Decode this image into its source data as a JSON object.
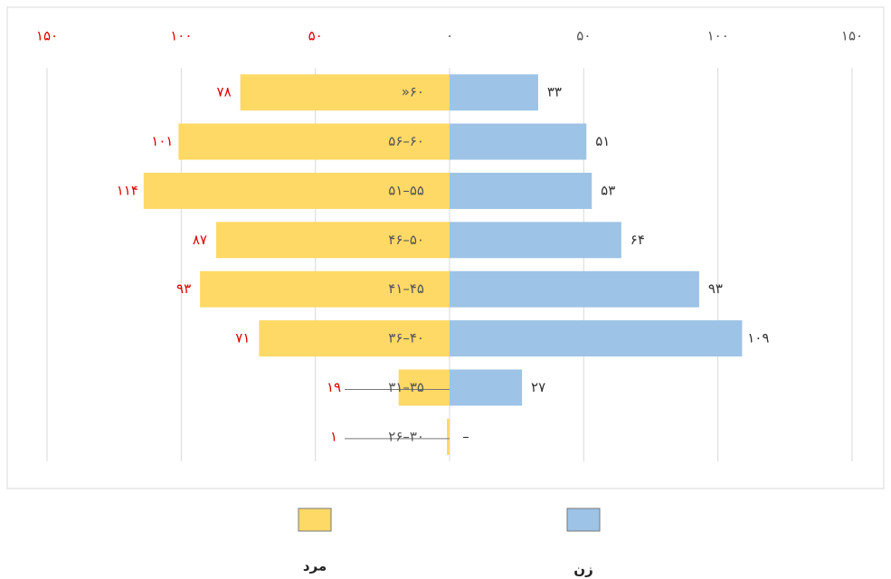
{
  "chart_data": {
    "type": "pyramid",
    "categories": [
      "»۶۰",
      "۵۶–۶۰",
      "۵۱–۵۵",
      "۴۶–۵۰",
      "۴۱–۴۵",
      "۳۶–۴۰",
      "۳۱–۳۵",
      "۲۶–۳۰"
    ],
    "series": [
      {
        "name": "مرد",
        "color": "#FFD966",
        "label_color": "#e00000",
        "side": "left",
        "values": [
          78,
          101,
          114,
          87,
          93,
          71,
          19,
          1
        ],
        "value_labels": [
          "۷۸",
          "۱۰۱",
          "۱۱۴",
          "۸۷",
          "۹۳",
          "۷۱",
          "۱۹",
          "۱"
        ]
      },
      {
        "name": "زن",
        "color": "#9DC3E6",
        "label_color": "#333333",
        "side": "right",
        "values": [
          33,
          51,
          53,
          64,
          93,
          109,
          27,
          0
        ],
        "value_labels": [
          "۳۳",
          "۵۱",
          "۵۳",
          "۶۴",
          "۹۳",
          "۱۰۹",
          "۲۷",
          "–"
        ]
      }
    ],
    "xlim": [
      -150,
      150
    ],
    "xticks": [
      {
        "value": -150,
        "label": "۱۵۰"
      },
      {
        "value": -100,
        "label": "۱۰۰"
      },
      {
        "value": -50,
        "label": "۵۰"
      },
      {
        "value": 0,
        "label": "۰"
      },
      {
        "value": 50,
        "label": "۵۰"
      },
      {
        "value": 100,
        "label": "۱۰۰"
      },
      {
        "value": 150,
        "label": "۱۵۰"
      }
    ],
    "xtick_colors": [
      "#e00000",
      "#e00000",
      "#e00000",
      "#555555",
      "#555555",
      "#555555",
      "#555555"
    ],
    "grid": true
  }
}
